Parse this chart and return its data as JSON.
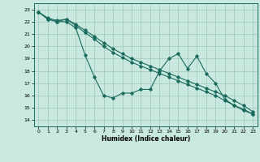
{
  "xlabel": "Humidex (Indice chaleur)",
  "xlim": [
    -0.5,
    23.5
  ],
  "ylim": [
    13.5,
    23.5
  ],
  "yticks": [
    14,
    15,
    16,
    17,
    18,
    19,
    20,
    21,
    22,
    23
  ],
  "xticks": [
    0,
    1,
    2,
    3,
    4,
    5,
    6,
    7,
    8,
    9,
    10,
    11,
    12,
    13,
    14,
    15,
    16,
    17,
    18,
    19,
    20,
    21,
    22,
    23
  ],
  "bg_color": "#c8e8e0",
  "line_color": "#1a6b5e",
  "grid_color": "#a0c8b8",
  "series": [
    {
      "x": [
        0,
        1,
        2,
        3,
        4,
        5,
        6,
        7,
        8,
        9,
        10,
        11,
        12,
        13,
        14,
        15,
        16,
        17,
        18,
        19,
        20,
        21,
        22,
        23
      ],
      "y": [
        22.8,
        22.2,
        22.0,
        22.0,
        21.5,
        19.3,
        17.5,
        16.0,
        15.8,
        16.2,
        16.2,
        16.5,
        16.5,
        18.0,
        19.0,
        19.4,
        18.2,
        19.2,
        17.8,
        17.0,
        15.7,
        15.2,
        14.9,
        14.5
      ]
    },
    {
      "x": [
        0,
        1,
        2,
        3,
        4,
        5,
        6,
        7,
        8,
        9,
        10,
        11,
        12,
        13,
        14,
        15,
        16,
        17,
        18,
        19,
        20,
        21,
        22,
        23
      ],
      "y": [
        22.8,
        22.2,
        22.0,
        22.2,
        21.8,
        21.3,
        20.8,
        20.3,
        19.8,
        19.4,
        19.0,
        18.7,
        18.4,
        18.1,
        17.8,
        17.5,
        17.2,
        16.9,
        16.6,
        16.3,
        16.0,
        15.6,
        15.2,
        14.7
      ]
    },
    {
      "x": [
        0,
        1,
        2,
        3,
        4,
        5,
        6,
        7,
        8,
        9,
        10,
        11,
        12,
        13,
        14,
        15,
        16,
        17,
        18,
        19,
        20,
        21,
        22,
        23
      ],
      "y": [
        22.8,
        22.3,
        22.1,
        22.2,
        21.7,
        21.1,
        20.6,
        20.0,
        19.5,
        19.1,
        18.7,
        18.4,
        18.1,
        17.8,
        17.5,
        17.2,
        16.9,
        16.6,
        16.3,
        16.0,
        15.6,
        15.2,
        14.8,
        14.5
      ]
    }
  ]
}
